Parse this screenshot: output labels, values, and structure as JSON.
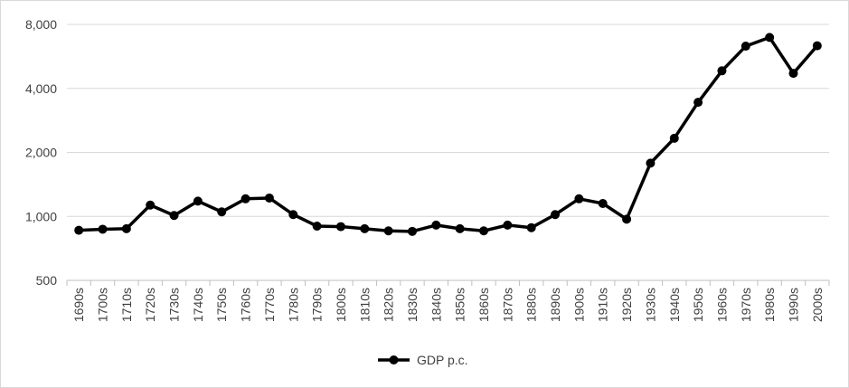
{
  "chart_data": {
    "type": "line",
    "title": "",
    "xlabel": "",
    "ylabel": "",
    "y_scale": "log",
    "ylim": [
      500,
      8000
    ],
    "y_ticks": [
      500,
      1000,
      2000,
      4000,
      8000
    ],
    "y_tick_labels": [
      "500",
      "1,000",
      "2,000",
      "4,000",
      "8,000"
    ],
    "grid": true,
    "legend_position": "bottom",
    "categories": [
      "1690s",
      "1700s",
      "1710s",
      "1720s",
      "1730s",
      "1740s",
      "1750s",
      "1760s",
      "1770s",
      "1780s",
      "1790s",
      "1800s",
      "1810s",
      "1820s",
      "1830s",
      "1840s",
      "1850s",
      "1860s",
      "1870s",
      "1880s",
      "1890s",
      "1900s",
      "1910s",
      "1920s",
      "1930s",
      "1940s",
      "1950s",
      "1960s",
      "1970s",
      "1980s",
      "1990s",
      "2000s"
    ],
    "series": [
      {
        "name": "GDP p.c.",
        "color": "#000000",
        "values": [
          860,
          870,
          875,
          1130,
          1010,
          1180,
          1050,
          1210,
          1220,
          1020,
          900,
          895,
          875,
          855,
          850,
          910,
          875,
          855,
          910,
          885,
          1020,
          1210,
          1150,
          970,
          1780,
          2330,
          3440,
          4840,
          6320,
          6950,
          4710,
          6350
        ]
      }
    ]
  }
}
